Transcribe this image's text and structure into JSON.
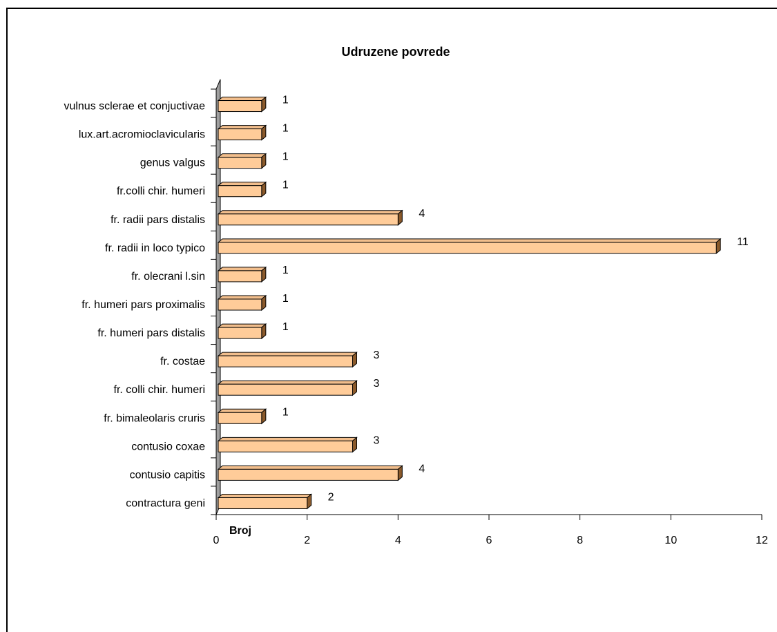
{
  "chart_data": {
    "type": "bar",
    "orientation": "horizontal",
    "title": "Udruzene povrede",
    "xlabel": "Broj",
    "ylabel": "",
    "xlim": [
      0,
      12
    ],
    "x_ticks": [
      "0",
      "2",
      "4",
      "6",
      "8",
      "10",
      "12"
    ],
    "categories": [
      "vulnus sclerae et conjuctivae",
      "lux.art.acromioclavicularis",
      "genus valgus",
      "fr.colli chir. humeri",
      "fr. radii pars distalis",
      "fr. radii in loco typico",
      "fr. olecrani l.sin",
      "fr. humeri pars proximalis",
      "fr. humeri pars distalis",
      "fr. costae",
      "fr. colli chir. humeri",
      "fr. bimaleolaris cruris",
      "contusio coxae",
      "contusio capitis",
      "contractura geni"
    ],
    "values": [
      1,
      1,
      1,
      1,
      4,
      11,
      1,
      1,
      1,
      3,
      3,
      1,
      3,
      4,
      2
    ],
    "data_labels": [
      "1",
      "1",
      "1",
      "1",
      "4",
      "11",
      "1",
      "1",
      "1",
      "3",
      "3",
      "1",
      "3",
      "4",
      "2"
    ],
    "bar_color": "#FFCC99",
    "bar_side_color": "#8B5A2B",
    "wall_color": "#A0A0A0",
    "grid": false,
    "legend": "none"
  }
}
